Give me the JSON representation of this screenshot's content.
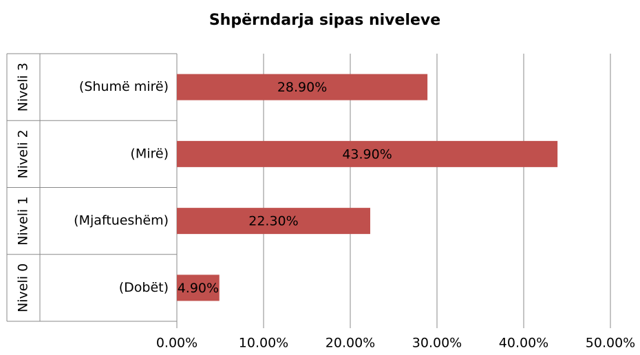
{
  "chart_data": {
    "type": "bar",
    "orientation": "horizontal",
    "title": "Shpërndarja sipas niveleve",
    "groups": [
      "Niveli 3",
      "Niveli 2",
      "Niveli 1",
      "Niveli 0"
    ],
    "categories": [
      "(Shumë mirë)",
      "(Mirë)",
      "(Mjaftueshëm)",
      "(Dobët)"
    ],
    "values": [
      28.9,
      43.9,
      22.3,
      4.9
    ],
    "value_labels": [
      "28.90%",
      "43.90%",
      "22.30%",
      "4.90%"
    ],
    "color": "#c0504d",
    "xlim": [
      0,
      50
    ],
    "xticks": [
      {
        "value": 0,
        "label": "0.00%"
      },
      {
        "value": 10,
        "label": "10.00%"
      },
      {
        "value": 20,
        "label": "20.00%"
      },
      {
        "value": 30,
        "label": "30.00%"
      },
      {
        "value": 40,
        "label": "40.00%"
      },
      {
        "value": 50,
        "label": "50.00%"
      }
    ],
    "grid": true
  }
}
